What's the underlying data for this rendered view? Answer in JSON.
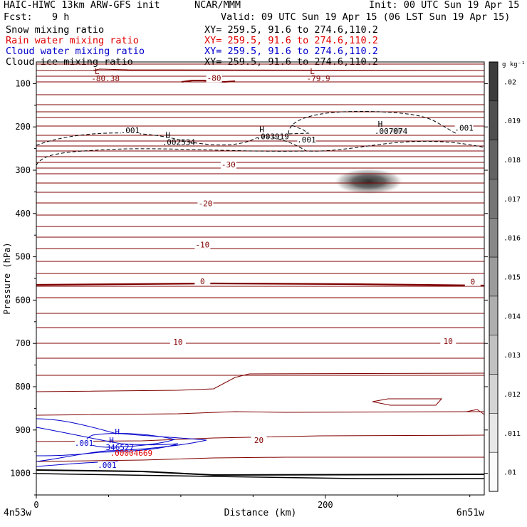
{
  "header": {
    "model": "HAIC-HIWC 13km ARW-GFS init",
    "org": "NCAR/MMM",
    "init": "Init: 00 UTC Sun 19 Apr 15",
    "fcst_label": "Fcst:",
    "fcst_value": "9 h",
    "valid": "Valid: 09 UTC Sun 19 Apr 15 (06 LST Sun 19 Apr 15)"
  },
  "legend": [
    {
      "label": "Snow mixing ratio",
      "xy": "XY= 259.5, 91.6 to 274.6,110.2",
      "color": "#000000"
    },
    {
      "label": "Rain water mixing ratio",
      "xy": "XY= 259.5, 91.6 to 274.6,110.2",
      "color": "#e00000"
    },
    {
      "label": "Cloud water mixing ratio",
      "xy": "XY= 259.5, 91.6 to 274.6,110.2",
      "color": "#0000cc"
    },
    {
      "label": "Cloud ice mixing ratio",
      "xy": "XY= 259.5, 91.6 to 274.6,110.2",
      "color": "#000000"
    }
  ],
  "chart_data": {
    "type": "cross-section contour",
    "xlabel": "Distance (km)",
    "ylabel": "Pressure (hPa)",
    "x_ticks": [
      "0",
      "200"
    ],
    "x_range": [
      0,
      310
    ],
    "y_ticks": [
      "100",
      "200",
      "300",
      "400",
      "500",
      "600",
      "700",
      "800",
      "900",
      "1000"
    ],
    "y_range": [
      50,
      1050
    ],
    "end_labels": {
      "left": "4n53w",
      "right": "6n51w"
    },
    "colorbar": {
      "unit": "g kg⁻¹",
      "labels": [
        ".02",
        ".019",
        ".018",
        ".017",
        ".016",
        ".015",
        ".014",
        ".013",
        ".012",
        ".011",
        ".01"
      ]
    },
    "temperature_isotherm_labels": [
      {
        "text": "-80",
        "x": 123,
        "p": 90
      },
      {
        "text": "-30",
        "x": 133,
        "p": 290
      },
      {
        "text": "-20",
        "x": 117,
        "p": 380
      },
      {
        "text": "-10",
        "x": 115,
        "p": 475
      },
      {
        "text": "0",
        "x": 115,
        "p": 560
      },
      {
        "text": "0",
        "x": 302,
        "p": 561
      },
      {
        "text": "10",
        "x": 98,
        "p": 700
      },
      {
        "text": "10",
        "x": 285,
        "p": 698
      },
      {
        "text": "20",
        "x": 154,
        "p": 927
      }
    ],
    "extrema": [
      {
        "letter": "L",
        "value": "-80.38",
        "x": 42,
        "p": 78,
        "color": "#800000"
      },
      {
        "letter": "L",
        "value": "-79.9",
        "x": 191,
        "p": 78,
        "color": "#800000"
      },
      {
        "letter": "H",
        "value": ".002534",
        "x": 91,
        "p": 225,
        "color": "#000000"
      },
      {
        "letter": "H",
        "value": ".003919",
        "x": 156,
        "p": 212,
        "color": "#000000"
      },
      {
        "letter": "H",
        "value": ".007074",
        "x": 238,
        "p": 200,
        "color": "#000000"
      },
      {
        "letter": "H",
        "value": "",
        "x": 56,
        "p": 910,
        "color": "#0000cc"
      },
      {
        "letter": "H",
        "value": "346527",
        "x": 52,
        "p": 930,
        "color": "#0000cc"
      },
      {
        "letter": "",
        "value": ".00004669",
        "x": 51,
        "p": 943,
        "color": "#e00000"
      }
    ],
    "cloud_ice_contour_labels": [
      {
        "text": ".001",
        "x": 65,
        "p": 213
      },
      {
        "text": ".001",
        "x": 187,
        "p": 234
      },
      {
        "text": ".001",
        "x": 296,
        "p": 207
      }
    ],
    "cloud_water_contour_labels": [
      {
        "text": ".001",
        "x": 33,
        "p": 935
      },
      {
        "text": ".001",
        "x": 49,
        "p": 986
      }
    ],
    "snow_max": {
      "x": 230,
      "p": 326,
      "value_range": [
        0.01,
        0.02
      ]
    }
  }
}
